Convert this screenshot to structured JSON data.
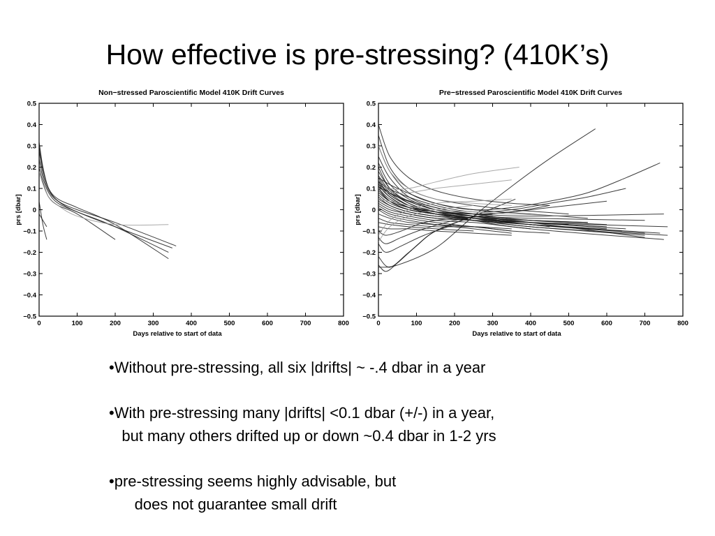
{
  "slide": {
    "title": "How effective is pre-stressing? (410K’s)"
  },
  "bullets": [
    {
      "line1": "•Without pre-stressing, all six |drifts| ~ -.4 dbar in a year",
      "line2": ""
    },
    {
      "line1": "•With pre-stressing many |drifts| <0.1 dbar (+/-) in a year,",
      "line2": "   but many others drifted up or down ~0.4 dbar in 1-2 yrs"
    },
    {
      "line1": "•pre-stressing seems highly advisable, but",
      "line2": "      does not guarantee small drift"
    }
  ],
  "chart_data": [
    {
      "type": "line",
      "title": "Non−stressed Paroscientific Model 410K Drift Curves",
      "xlabel": "Days relative to start of data",
      "ylabel": "prs [dbar]",
      "xlim": [
        0,
        800
      ],
      "ylim": [
        -0.5,
        0.5
      ],
      "xticks": [
        0,
        100,
        200,
        300,
        400,
        500,
        600,
        700,
        800
      ],
      "yticks": [
        0.5,
        0.4,
        0.3,
        0.2,
        0.1,
        0,
        -0.1,
        -0.2,
        -0.3,
        -0.4,
        -0.5
      ],
      "ytick_labels": [
        "0.5",
        "0.4",
        "0.3",
        "0.2",
        "0.1",
        "0",
        "−0.1",
        "−0.2",
        "−0.3",
        "−0.4",
        "−0.5"
      ],
      "grid": false,
      "line_color": "#1a1a1a",
      "series": [
        {
          "x": [
            0,
            10,
            25,
            50,
            100,
            200,
            350
          ],
          "y": [
            0.32,
            0.2,
            0.1,
            0.04,
            -0.01,
            -0.08,
            -0.18
          ]
        },
        {
          "x": [
            0,
            10,
            25,
            50,
            100,
            200,
            340
          ],
          "y": [
            0.3,
            0.19,
            0.1,
            0.05,
            0.01,
            -0.07,
            -0.23
          ]
        },
        {
          "x": [
            0,
            10,
            25,
            50,
            100,
            200,
            360
          ],
          "y": [
            0.28,
            0.17,
            0.09,
            0.04,
            0.0,
            -0.06,
            -0.17
          ]
        },
        {
          "x": [
            0,
            10,
            25,
            50,
            100,
            200,
            340
          ],
          "y": [
            0.24,
            0.15,
            0.08,
            0.03,
            -0.01,
            -0.08,
            -0.2
          ]
        },
        {
          "x": [
            0,
            10,
            25,
            50,
            100,
            200
          ],
          "y": [
            0.2,
            0.13,
            0.06,
            0.02,
            -0.02,
            -0.14
          ]
        },
        {
          "x": [
            0,
            10,
            25,
            50,
            100,
            200,
            340
          ],
          "y": [
            0.18,
            0.12,
            0.06,
            0.02,
            -0.03,
            -0.07,
            -0.07
          ],
          "color": "#9a9a9a"
        },
        {
          "x": [
            0,
            10,
            20
          ],
          "y": [
            0.04,
            -0.07,
            -0.14
          ]
        },
        {
          "x": [
            0,
            10,
            20
          ],
          "y": [
            -0.02,
            -0.05,
            -0.08
          ]
        }
      ]
    },
    {
      "type": "line",
      "title": "Pre−stressed Paroscientific Model 410K Drift Curves",
      "xlabel": "Days relative to start of data",
      "ylabel": "prs [dbar]",
      "xlim": [
        0,
        800
      ],
      "ylim": [
        -0.5,
        0.5
      ],
      "xticks": [
        0,
        100,
        200,
        300,
        400,
        500,
        600,
        700,
        800
      ],
      "yticks": [
        0.5,
        0.4,
        0.3,
        0.2,
        0.1,
        0,
        -0.1,
        -0.2,
        -0.3,
        -0.4,
        -0.5
      ],
      "ytick_labels": [
        "0.5",
        "0.4",
        "0.3",
        "0.2",
        "0.1",
        "0",
        "−0.1",
        "−0.2",
        "−0.3",
        "−0.4",
        "−0.5"
      ],
      "grid": false,
      "line_color": "#1a1a1a",
      "series": [
        {
          "x": [
            0,
            30,
            80,
            150,
            250,
            350,
            450
          ],
          "y": [
            0.4,
            0.25,
            0.15,
            0.09,
            0.05,
            0.03,
            0.02
          ]
        },
        {
          "x": [
            0,
            30,
            80,
            150,
            250,
            350,
            500
          ],
          "y": [
            0.35,
            0.2,
            0.1,
            0.05,
            0.02,
            0.0,
            -0.02
          ]
        },
        {
          "x": [
            0,
            30,
            80,
            150,
            250,
            400,
            550
          ],
          "y": [
            0.3,
            0.18,
            0.08,
            0.03,
            0.0,
            -0.02,
            -0.04
          ]
        },
        {
          "x": [
            0,
            30,
            80,
            150,
            250,
            400,
            600
          ],
          "y": [
            0.25,
            0.15,
            0.06,
            0.01,
            -0.02,
            -0.05,
            -0.07
          ]
        },
        {
          "x": [
            0,
            30,
            80,
            150,
            250,
            400,
            650
          ],
          "y": [
            0.22,
            0.12,
            0.05,
            0.0,
            -0.03,
            -0.06,
            -0.09
          ]
        },
        {
          "x": [
            0,
            30,
            80,
            150,
            250,
            400,
            700
          ],
          "y": [
            0.2,
            0.1,
            0.04,
            0.0,
            -0.03,
            -0.07,
            -0.11
          ]
        },
        {
          "x": [
            0,
            30,
            80,
            150,
            250,
            400,
            760
          ],
          "y": [
            0.18,
            0.1,
            0.03,
            -0.01,
            -0.04,
            -0.08,
            -0.12
          ]
        },
        {
          "x": [
            0,
            30,
            80,
            150,
            250,
            400,
            750
          ],
          "y": [
            0.16,
            0.09,
            0.03,
            -0.01,
            -0.05,
            -0.09,
            -0.14
          ]
        },
        {
          "x": [
            0,
            30,
            80,
            150,
            250,
            400,
            700
          ],
          "y": [
            0.15,
            0.08,
            0.02,
            -0.02,
            -0.05,
            -0.08,
            -0.12
          ]
        },
        {
          "x": [
            0,
            30,
            80,
            150,
            250,
            400,
            600
          ],
          "y": [
            0.14,
            0.07,
            0.02,
            -0.02,
            -0.04,
            -0.06,
            -0.08
          ]
        },
        {
          "x": [
            0,
            30,
            80,
            150,
            250,
            400,
            550
          ],
          "y": [
            0.13,
            0.07,
            0.02,
            -0.01,
            -0.03,
            -0.05,
            -0.06
          ]
        },
        {
          "x": [
            0,
            30,
            80,
            150,
            250,
            400,
            500
          ],
          "y": [
            0.12,
            0.06,
            0.01,
            -0.02,
            -0.04,
            -0.06,
            -0.07
          ]
        },
        {
          "x": [
            0,
            30,
            80,
            150,
            250,
            400,
            700
          ],
          "y": [
            0.11,
            0.06,
            0.01,
            -0.02,
            -0.03,
            -0.04,
            -0.05
          ]
        },
        {
          "x": [
            0,
            30,
            80,
            150,
            250,
            400,
            750
          ],
          "y": [
            0.1,
            0.05,
            0.01,
            -0.01,
            -0.02,
            -0.03,
            -0.02
          ]
        },
        {
          "x": [
            0,
            30,
            80,
            150,
            250,
            400,
            760
          ],
          "y": [
            0.1,
            0.04,
            0.0,
            -0.02,
            -0.04,
            -0.06,
            -0.08
          ]
        },
        {
          "x": [
            0,
            30,
            80,
            150,
            250,
            400,
            740
          ],
          "y": [
            0.09,
            0.04,
            0.0,
            -0.02,
            -0.04,
            -0.07,
            -0.11
          ]
        },
        {
          "x": [
            0,
            30,
            80,
            150,
            250,
            400,
            700
          ],
          "y": [
            0.08,
            0.04,
            0.01,
            -0.01,
            -0.03,
            -0.06,
            -0.13
          ]
        },
        {
          "x": [
            0,
            30,
            80,
            150,
            250,
            400,
            640
          ],
          "y": [
            0.07,
            0.03,
            0.0,
            -0.02,
            -0.04,
            -0.07,
            -0.1
          ]
        },
        {
          "x": [
            0,
            30,
            80,
            150,
            250,
            400,
            600
          ],
          "y": [
            0.06,
            0.02,
            -0.01,
            -0.03,
            -0.05,
            -0.07,
            -0.09
          ]
        },
        {
          "x": [
            0,
            30,
            80,
            150,
            250,
            400,
            550
          ],
          "y": [
            0.05,
            0.02,
            -0.01,
            -0.03,
            -0.04,
            -0.05,
            -0.06
          ]
        },
        {
          "x": [
            0,
            30,
            80,
            150,
            250,
            400,
            500
          ],
          "y": [
            0.04,
            0.01,
            -0.02,
            -0.04,
            -0.05,
            -0.06,
            -0.07
          ]
        },
        {
          "x": [
            0,
            30,
            80,
            150,
            250,
            400,
            450
          ],
          "y": [
            0.03,
            0.0,
            -0.02,
            -0.04,
            -0.05,
            -0.07,
            -0.08
          ]
        },
        {
          "x": [
            0,
            30,
            80,
            150,
            250,
            350,
            400
          ],
          "y": [
            0.02,
            -0.01,
            -0.03,
            -0.05,
            -0.06,
            -0.08,
            -0.09
          ]
        },
        {
          "x": [
            0,
            30,
            80,
            150,
            250,
            350
          ],
          "y": [
            0.01,
            -0.02,
            -0.04,
            -0.06,
            -0.08,
            -0.1
          ]
        },
        {
          "x": [
            0,
            30,
            80,
            150,
            250,
            350
          ],
          "y": [
            0.0,
            -0.03,
            -0.05,
            -0.07,
            -0.09,
            -0.11
          ]
        },
        {
          "x": [
            0,
            30,
            80,
            150,
            250,
            350,
            450
          ],
          "y": [
            -0.02,
            -0.04,
            -0.06,
            -0.07,
            -0.08,
            -0.1,
            -0.11
          ]
        },
        {
          "x": [
            0,
            30,
            80,
            150,
            250,
            350
          ],
          "y": [
            -0.04,
            -0.06,
            -0.07,
            -0.08,
            -0.08,
            -0.09
          ]
        },
        {
          "x": [
            0,
            30,
            80,
            150,
            250
          ],
          "y": [
            -0.06,
            -0.07,
            -0.08,
            -0.09,
            -0.1
          ]
        },
        {
          "x": [
            0,
            30,
            80,
            150,
            250,
            350
          ],
          "y": [
            -0.08,
            -0.09,
            -0.09,
            -0.1,
            -0.11,
            -0.12
          ]
        },
        {
          "x": [
            0,
            20,
            60,
            120,
            200,
            300
          ],
          "y": [
            -0.1,
            -0.12,
            -0.1,
            -0.06,
            -0.04,
            -0.03
          ]
        },
        {
          "x": [
            0,
            20,
            60,
            120,
            200,
            300
          ],
          "y": [
            -0.13,
            -0.16,
            -0.13,
            -0.09,
            -0.05,
            -0.02
          ]
        },
        {
          "x": [
            0,
            20,
            60,
            120,
            200
          ],
          "y": [
            -0.16,
            -0.2,
            -0.17,
            -0.12,
            -0.07
          ]
        },
        {
          "x": [
            0,
            50,
            150,
            250,
            350,
            450,
            570
          ],
          "y": [
            -0.27,
            -0.26,
            -0.18,
            -0.03,
            0.11,
            0.24,
            0.38
          ]
        },
        {
          "x": [
            0,
            30,
            80,
            150,
            250,
            360
          ],
          "y": [
            -0.22,
            -0.27,
            -0.2,
            -0.1,
            -0.03,
            0.05
          ]
        },
        {
          "x": [
            0,
            20,
            50,
            100,
            150,
            250
          ],
          "y": [
            -0.26,
            -0.29,
            -0.25,
            -0.17,
            -0.1,
            -0.03
          ]
        },
        {
          "x": [
            0,
            50,
            150,
            250,
            350,
            450,
            550,
            650,
            740
          ],
          "y": [
            0.15,
            0.1,
            0.03,
            0.0,
            0.01,
            0.04,
            0.08,
            0.15,
            0.22
          ]
        },
        {
          "x": [
            0,
            50,
            150,
            250,
            350,
            450,
            550,
            650
          ],
          "y": [
            0.13,
            0.08,
            0.02,
            -0.01,
            0.0,
            0.03,
            0.06,
            0.1
          ]
        },
        {
          "x": [
            0,
            50,
            150,
            250,
            350,
            450,
            600
          ],
          "y": [
            0.12,
            0.06,
            0.0,
            -0.02,
            -0.01,
            0.01,
            0.04
          ]
        },
        {
          "x": [
            0,
            50,
            150,
            250,
            350,
            450
          ],
          "y": [
            0.11,
            0.06,
            0.01,
            -0.02,
            -0.01,
            0.02
          ]
        },
        {
          "x": [
            0,
            30,
            80,
            150,
            250,
            370
          ],
          "y": [
            0.14,
            0.1,
            0.1,
            0.13,
            0.17,
            0.2
          ],
          "color": "#9a9a9a"
        },
        {
          "x": [
            0,
            30,
            80,
            150,
            250,
            350
          ],
          "y": [
            0.1,
            0.08,
            0.08,
            0.1,
            0.12,
            0.14
          ],
          "color": "#9a9a9a"
        },
        {
          "x": [
            0,
            30,
            80,
            150,
            250
          ],
          "y": [
            -0.15,
            -0.08,
            -0.03,
            0.0,
            0.02
          ],
          "color": "#9a9a9a"
        },
        {
          "x": [
            0,
            30,
            80,
            150,
            250,
            350
          ],
          "y": [
            -0.12,
            -0.05,
            0.0,
            0.03,
            0.04,
            0.05
          ],
          "color": "#9a9a9a"
        },
        {
          "x": [
            0,
            30,
            80,
            150,
            250,
            350
          ],
          "y": [
            0.3,
            0.18,
            0.1,
            0.05,
            0.03,
            0.02
          ],
          "color": "#9a9a9a"
        },
        {
          "x": [
            0,
            30,
            80,
            150,
            250,
            350,
            500
          ],
          "y": [
            0.05,
            0.04,
            0.02,
            0.0,
            -0.01,
            -0.02,
            -0.03
          ],
          "color": "#9a9a9a"
        }
      ]
    }
  ]
}
